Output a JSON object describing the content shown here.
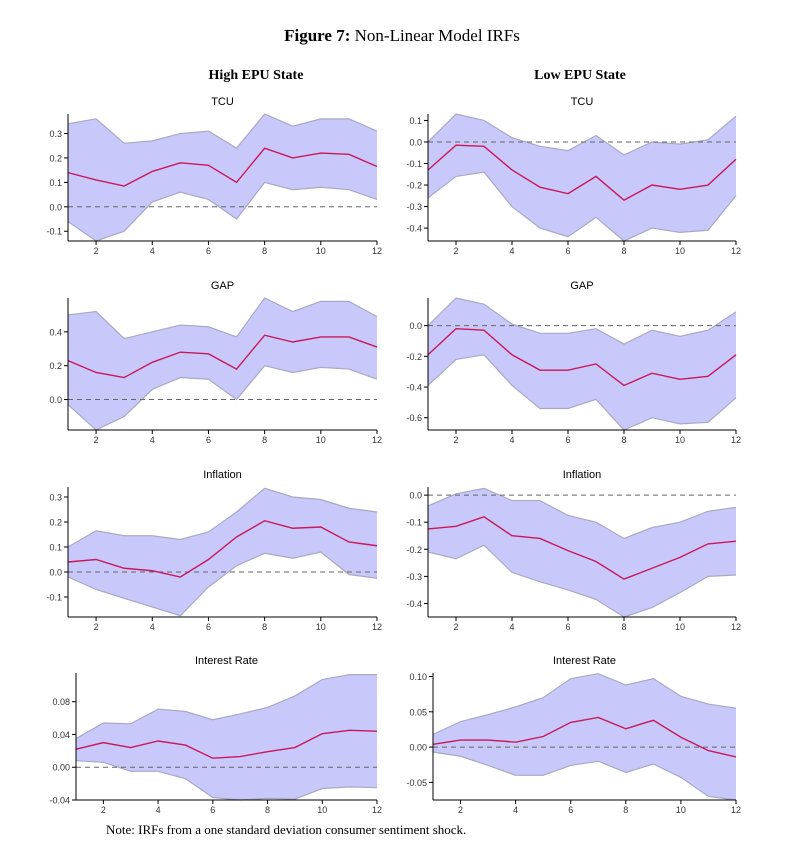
{
  "figure": {
    "title_bold": "Figure 7:",
    "title_rest": "Non-Linear Model IRFs",
    "col_left": "High EPU State",
    "col_right": "Low EPU State",
    "note": "Note: IRFs from a one standard deviation consumer sentiment shock."
  },
  "colors": {
    "band": "#c8c8fa",
    "band_edge": "#a9a9c4",
    "line": "#c8185a",
    "zero": "#666666",
    "axis": "#000000",
    "tick": "#333333"
  },
  "chart_data": [
    {
      "type": "line",
      "title": "TCU",
      "xlim": [
        1,
        12
      ],
      "ylim": [
        -0.14,
        0.38
      ],
      "xticks": [
        2,
        4,
        6,
        8,
        10,
        12
      ],
      "yticks": [
        -0.1,
        0.0,
        0.1,
        0.2,
        0.3
      ],
      "ytick_labels": [
        "-0.1",
        "0.0",
        "0.1",
        "0.2",
        "0.3"
      ],
      "x": [
        1,
        2,
        3,
        4,
        5,
        6,
        7,
        8,
        9,
        10,
        11,
        12
      ],
      "series": [
        {
          "role": "irf",
          "values": [
            0.14,
            0.11,
            0.085,
            0.145,
            0.18,
            0.17,
            0.1,
            0.24,
            0.2,
            0.22,
            0.215,
            0.165
          ]
        },
        {
          "role": "upper",
          "values": [
            0.34,
            0.36,
            0.26,
            0.27,
            0.3,
            0.31,
            0.24,
            0.38,
            0.33,
            0.36,
            0.36,
            0.31
          ]
        },
        {
          "role": "lower",
          "values": [
            -0.06,
            -0.14,
            -0.1,
            0.02,
            0.06,
            0.03,
            -0.05,
            0.1,
            0.07,
            0.08,
            0.07,
            0.03
          ]
        }
      ]
    },
    {
      "type": "line",
      "title": "TCU",
      "xlim": [
        1,
        12
      ],
      "ylim": [
        -0.46,
        0.13
      ],
      "xticks": [
        2,
        4,
        6,
        8,
        10,
        12
      ],
      "yticks": [
        -0.4,
        -0.3,
        -0.2,
        -0.1,
        0.0,
        0.1
      ],
      "ytick_labels": [
        "-0.4",
        "-0.3",
        "-0.2",
        "-0.1",
        "0.0",
        "0.1"
      ],
      "x": [
        1,
        2,
        3,
        4,
        5,
        6,
        7,
        8,
        9,
        10,
        11,
        12
      ],
      "series": [
        {
          "role": "irf",
          "values": [
            -0.13,
            -0.015,
            -0.02,
            -0.13,
            -0.21,
            -0.24,
            -0.16,
            -0.27,
            -0.2,
            -0.22,
            -0.2,
            -0.08
          ]
        },
        {
          "role": "upper",
          "values": [
            0.0,
            0.13,
            0.1,
            0.02,
            -0.02,
            -0.04,
            0.03,
            -0.06,
            0.0,
            -0.01,
            0.01,
            0.12
          ]
        },
        {
          "role": "lower",
          "values": [
            -0.26,
            -0.16,
            -0.14,
            -0.3,
            -0.4,
            -0.44,
            -0.35,
            -0.47,
            -0.4,
            -0.42,
            -0.41,
            -0.25
          ]
        }
      ]
    },
    {
      "type": "line",
      "title": "GAP",
      "xlim": [
        1,
        12
      ],
      "ylim": [
        -0.18,
        0.6
      ],
      "xticks": [
        2,
        4,
        6,
        8,
        10,
        12
      ],
      "yticks": [
        0.0,
        0.2,
        0.4
      ],
      "ytick_labels": [
        "0.0",
        "0.2",
        "0.4"
      ],
      "x": [
        1,
        2,
        3,
        4,
        5,
        6,
        7,
        8,
        9,
        10,
        11,
        12
      ],
      "series": [
        {
          "role": "irf",
          "values": [
            0.23,
            0.16,
            0.13,
            0.22,
            0.28,
            0.27,
            0.18,
            0.38,
            0.34,
            0.37,
            0.37,
            0.31
          ]
        },
        {
          "role": "upper",
          "values": [
            0.5,
            0.52,
            0.36,
            0.4,
            0.44,
            0.43,
            0.37,
            0.6,
            0.52,
            0.58,
            0.58,
            0.49
          ]
        },
        {
          "role": "lower",
          "values": [
            -0.03,
            -0.19,
            -0.1,
            0.06,
            0.13,
            0.12,
            0.0,
            0.2,
            0.16,
            0.19,
            0.18,
            0.12
          ]
        }
      ]
    },
    {
      "type": "line",
      "title": "GAP",
      "xlim": [
        1,
        12
      ],
      "ylim": [
        -0.68,
        0.18
      ],
      "xticks": [
        2,
        4,
        6,
        8,
        10,
        12
      ],
      "yticks": [
        -0.6,
        -0.4,
        -0.2,
        0.0
      ],
      "ytick_labels": [
        "-0.6",
        "-0.4",
        "-0.2",
        "0.0"
      ],
      "x": [
        1,
        2,
        3,
        4,
        5,
        6,
        7,
        8,
        9,
        10,
        11,
        12
      ],
      "series": [
        {
          "role": "irf",
          "values": [
            -0.19,
            -0.02,
            -0.03,
            -0.19,
            -0.29,
            -0.29,
            -0.25,
            -0.39,
            -0.31,
            -0.35,
            -0.33,
            -0.19
          ]
        },
        {
          "role": "upper",
          "values": [
            0.0,
            0.18,
            0.14,
            0.01,
            -0.05,
            -0.05,
            -0.02,
            -0.12,
            -0.03,
            -0.07,
            -0.03,
            0.09
          ]
        },
        {
          "role": "lower",
          "values": [
            -0.39,
            -0.22,
            -0.19,
            -0.39,
            -0.54,
            -0.54,
            -0.48,
            -0.68,
            -0.6,
            -0.64,
            -0.63,
            -0.47
          ]
        }
      ]
    },
    {
      "type": "line",
      "title": "Inflation",
      "xlim": [
        1,
        12
      ],
      "ylim": [
        -0.18,
        0.34
      ],
      "xticks": [
        2,
        4,
        6,
        8,
        10,
        12
      ],
      "yticks": [
        -0.1,
        0.0,
        0.1,
        0.2,
        0.3
      ],
      "ytick_labels": [
        "-0.1",
        "0.0",
        "0.1",
        "0.2",
        "0.3"
      ],
      "x": [
        1,
        2,
        3,
        4,
        5,
        6,
        7,
        8,
        9,
        10,
        11,
        12
      ],
      "series": [
        {
          "role": "irf",
          "values": [
            0.04,
            0.05,
            0.015,
            0.005,
            -0.02,
            0.05,
            0.14,
            0.205,
            0.175,
            0.18,
            0.12,
            0.105
          ]
        },
        {
          "role": "upper",
          "values": [
            0.1,
            0.165,
            0.145,
            0.145,
            0.13,
            0.16,
            0.24,
            0.335,
            0.3,
            0.29,
            0.255,
            0.24
          ]
        },
        {
          "role": "lower",
          "values": [
            -0.02,
            -0.07,
            -0.105,
            -0.14,
            -0.175,
            -0.06,
            0.025,
            0.075,
            0.055,
            0.08,
            -0.01,
            -0.025
          ]
        }
      ]
    },
    {
      "type": "line",
      "title": "Inflation",
      "xlim": [
        1,
        12
      ],
      "ylim": [
        -0.45,
        0.03
      ],
      "xticks": [
        2,
        4,
        6,
        8,
        10,
        12
      ],
      "yticks": [
        -0.4,
        -0.3,
        -0.2,
        -0.1,
        0.0
      ],
      "ytick_labels": [
        "-0.4",
        "-0.3",
        "-0.2",
        "-0.1",
        "0.0"
      ],
      "x": [
        1,
        2,
        3,
        4,
        5,
        6,
        7,
        8,
        9,
        10,
        11,
        12
      ],
      "series": [
        {
          "role": "irf",
          "values": [
            -0.125,
            -0.115,
            -0.08,
            -0.15,
            -0.16,
            -0.205,
            -0.245,
            -0.31,
            -0.27,
            -0.23,
            -0.18,
            -0.17
          ]
        },
        {
          "role": "upper",
          "values": [
            -0.04,
            0.005,
            0.025,
            -0.02,
            -0.02,
            -0.075,
            -0.1,
            -0.16,
            -0.12,
            -0.1,
            -0.06,
            -0.045
          ]
        },
        {
          "role": "lower",
          "values": [
            -0.21,
            -0.235,
            -0.185,
            -0.285,
            -0.32,
            -0.35,
            -0.385,
            -0.455,
            -0.415,
            -0.36,
            -0.3,
            -0.295
          ]
        }
      ]
    },
    {
      "type": "line",
      "title": "Interest Rate",
      "xlim": [
        1,
        12
      ],
      "ylim": [
        -0.04,
        0.115
      ],
      "xticks": [
        2,
        4,
        6,
        8,
        10,
        12
      ],
      "yticks": [
        -0.04,
        0.0,
        0.04,
        0.08
      ],
      "ytick_labels": [
        "-0.04",
        "0.00",
        "0.04",
        "0.08"
      ],
      "x": [
        1,
        2,
        3,
        4,
        5,
        6,
        7,
        8,
        9,
        10,
        11,
        12
      ],
      "series": [
        {
          "role": "irf",
          "values": [
            0.022,
            0.03,
            0.024,
            0.032,
            0.027,
            0.011,
            0.013,
            0.019,
            0.024,
            0.041,
            0.045,
            0.044
          ]
        },
        {
          "role": "upper",
          "values": [
            0.035,
            0.054,
            0.053,
            0.071,
            0.068,
            0.058,
            0.065,
            0.073,
            0.087,
            0.107,
            0.113,
            0.113
          ]
        },
        {
          "role": "lower",
          "values": [
            0.008,
            0.006,
            -0.005,
            -0.005,
            -0.014,
            -0.037,
            -0.04,
            -0.038,
            -0.039,
            -0.026,
            -0.024,
            -0.025
          ]
        }
      ]
    },
    {
      "type": "line",
      "title": "Interest Rate",
      "xlim": [
        1,
        12
      ],
      "ylim": [
        -0.075,
        0.105
      ],
      "xticks": [
        2,
        4,
        6,
        8,
        10,
        12
      ],
      "yticks": [
        -0.05,
        0.0,
        0.05,
        0.1
      ],
      "ytick_labels": [
        "-0.05",
        "0.00",
        "0.05",
        "0.10"
      ],
      "x": [
        1,
        2,
        3,
        4,
        5,
        6,
        7,
        8,
        9,
        10,
        11,
        12
      ],
      "series": [
        {
          "role": "irf",
          "values": [
            0.004,
            0.01,
            0.01,
            0.007,
            0.015,
            0.035,
            0.042,
            0.026,
            0.038,
            0.014,
            -0.005,
            -0.014
          ]
        },
        {
          "role": "upper",
          "values": [
            0.018,
            0.036,
            0.046,
            0.057,
            0.07,
            0.097,
            0.104,
            0.088,
            0.097,
            0.072,
            0.061,
            0.055
          ]
        },
        {
          "role": "lower",
          "values": [
            -0.007,
            -0.013,
            -0.026,
            -0.04,
            -0.04,
            -0.026,
            -0.02,
            -0.036,
            -0.024,
            -0.043,
            -0.07,
            -0.075
          ]
        }
      ]
    }
  ]
}
